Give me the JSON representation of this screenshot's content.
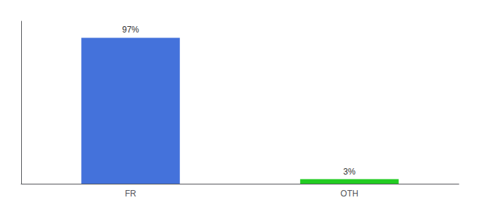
{
  "chart_data": {
    "type": "bar",
    "categories": [
      "FR",
      "OTH"
    ],
    "values": [
      97,
      3
    ],
    "value_labels": [
      "97%",
      "3%"
    ],
    "colors": [
      "#4472db",
      "#22cc22"
    ],
    "ylim": [
      0,
      108
    ],
    "grid": false,
    "data_labels": true,
    "tick_labels": "x"
  }
}
